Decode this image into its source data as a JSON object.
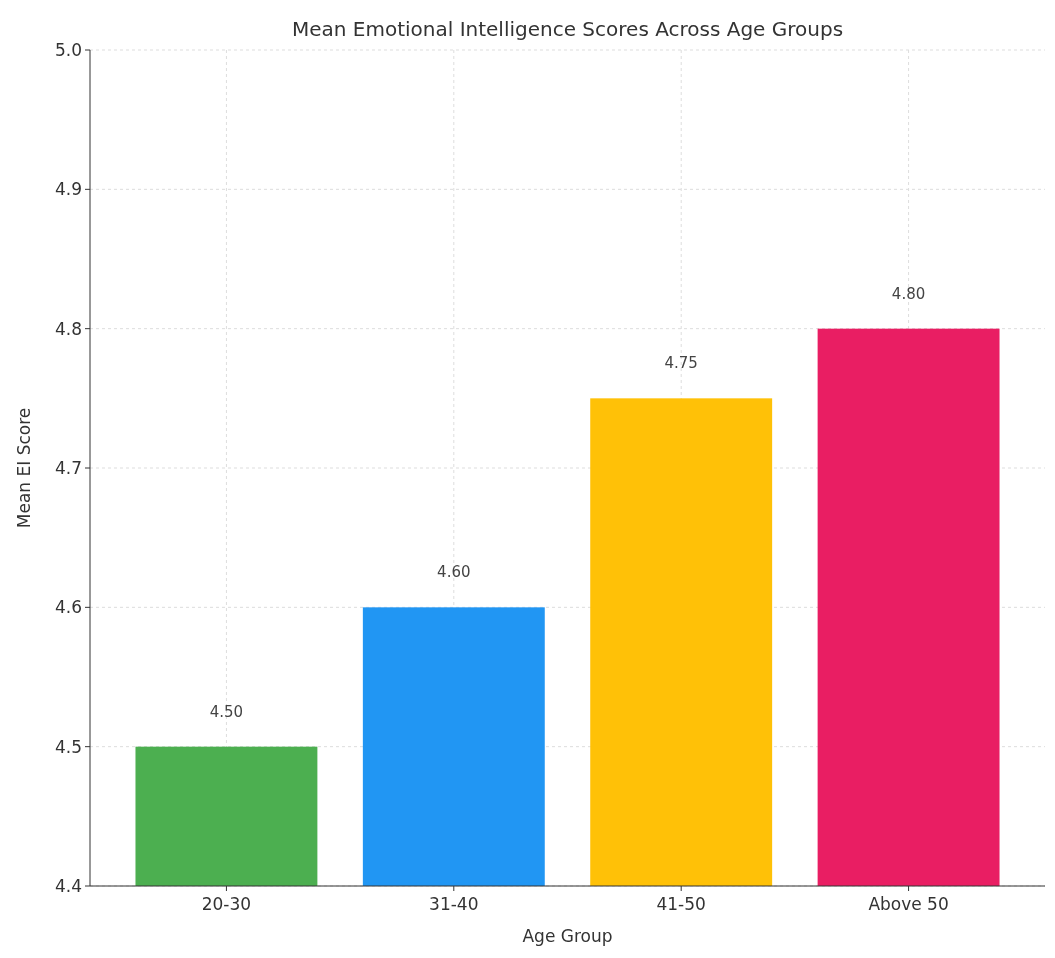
{
  "chart_data": {
    "type": "bar",
    "title": "Mean Emotional Intelligence Scores Across Age Groups",
    "xlabel": "Age Group",
    "ylabel": "Mean EI Score",
    "categories": [
      "20-30",
      "31-40",
      "41-50",
      "Above 50"
    ],
    "values": [
      4.5,
      4.6,
      4.75,
      4.8
    ],
    "colors": [
      "#4caf50",
      "#2196f3",
      "#ffc107",
      "#e91e63"
    ],
    "value_labels": [
      "4.50",
      "4.60",
      "4.75",
      "4.80"
    ],
    "ylim": [
      4.4,
      5.0
    ],
    "yticks": [
      {
        "value": 4.4,
        "label": "4.4"
      },
      {
        "value": 4.5,
        "label": "4.5"
      },
      {
        "value": 4.6,
        "label": "4.6"
      },
      {
        "value": 4.7,
        "label": "4.7"
      },
      {
        "value": 4.8,
        "label": "4.8"
      },
      {
        "value": 4.9,
        "label": "4.9"
      },
      {
        "value": 5.0,
        "label": "5.0"
      }
    ],
    "grid": true
  }
}
